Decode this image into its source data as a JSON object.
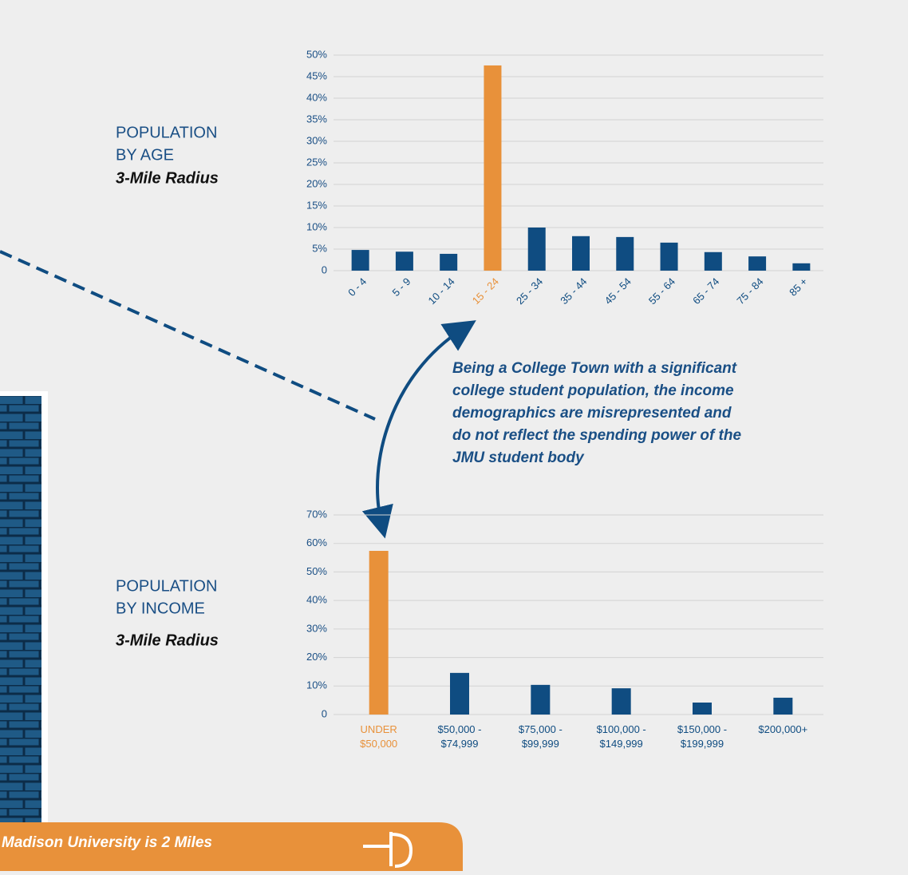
{
  "chart_data": [
    {
      "type": "bar",
      "title": [
        "POPULATION",
        "BY AGE"
      ],
      "subtitle": "3-Mile Radius",
      "categories": [
        "0 - 4",
        "5 - 9",
        "10 - 14",
        "15 - 24",
        "25 - 34",
        "35 - 44",
        "45 - 54",
        "55 - 64",
        "65 - 74",
        "75 - 84",
        "85 +"
      ],
      "values": [
        4.8,
        4.4,
        3.9,
        47.6,
        10,
        8,
        7.8,
        6.5,
        4.3,
        3.3,
        1.7
      ],
      "colors": [
        "#0f4c81",
        "#0f4c81",
        "#0f4c81",
        "#e8913a",
        "#0f4c81",
        "#0f4c81",
        "#0f4c81",
        "#0f4c81",
        "#0f4c81",
        "#0f4c81",
        "#0f4c81"
      ],
      "ylim": [
        0,
        50
      ],
      "yticks": [
        0,
        {
          "value": 5,
          "label": "5%"
        },
        {
          "value": 10,
          "label": "10%"
        },
        {
          "value": 15,
          "label": "15%"
        },
        {
          "value": 20,
          "label": "20%"
        },
        {
          "value": 25,
          "label": "25%"
        },
        {
          "value": 30,
          "label": "30%"
        },
        {
          "value": 35,
          "label": "35%"
        },
        {
          "value": 40,
          "label": "40%"
        },
        {
          "value": 45,
          "label": "45%"
        },
        {
          "value": 50,
          "label": "50%"
        }
      ],
      "grid": true
    },
    {
      "type": "bar",
      "title": [
        "POPULATION",
        "BY INCOME"
      ],
      "subtitle": "3-Mile Radius",
      "categories": [
        [
          "UNDER",
          "$50,000"
        ],
        [
          "$50,000 -",
          "$74,999"
        ],
        [
          "$75,000 -",
          "$99,999"
        ],
        [
          "$100,000 -",
          "$149,999"
        ],
        [
          "$150,000 -",
          "$199,999"
        ],
        [
          "$200,000+"
        ]
      ],
      "values": [
        57.4,
        14.6,
        10.4,
        9.2,
        4.2,
        5.9
      ],
      "colors": [
        "#e8913a",
        "#0f4c81",
        "#0f4c81",
        "#0f4c81",
        "#0f4c81",
        "#0f4c81"
      ],
      "ylim": [
        0,
        70
      ],
      "yticks": [
        0,
        {
          "value": 10,
          "label": "10%"
        },
        {
          "value": 20,
          "label": "20%"
        },
        {
          "value": 30,
          "label": "30%"
        },
        {
          "value": 40,
          "label": "40%"
        },
        {
          "value": 50,
          "label": "50%"
        },
        {
          "value": 60,
          "label": "60%"
        },
        {
          "value": 70,
          "label": "70%"
        }
      ],
      "grid": true
    }
  ],
  "annotation": [
    "Being a College Town with a significant",
    "college student population, the income",
    "demographics are misrepresented and",
    "do not reflect the spending power of the",
    "JMU student body"
  ],
  "banner": "Madison University is 2 Miles"
}
